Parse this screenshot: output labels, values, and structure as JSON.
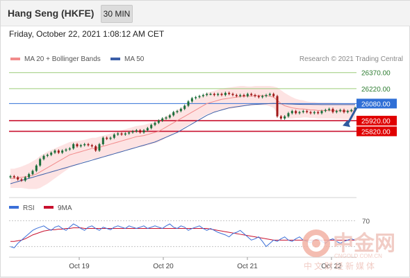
{
  "header": {
    "title": "Hang Seng (HKFE)",
    "interval": "30 MIN"
  },
  "datetime": "Friday, October 22, 2021 1:08:12 AM CET",
  "legend": {
    "ma20_label": "MA 20 + Bollinger Bands",
    "ma50_label": "MA 50",
    "copyright": "Research © 2021 Trading Central"
  },
  "rsi_legend": {
    "rsi_label": "RSI",
    "ma9_label": "9MA"
  },
  "watermark": {
    "logo_text": "中金网",
    "domain": "CNGOLD.COM.CN",
    "sub": "中文财经新媒体"
  },
  "colors": {
    "ma20": "#f28b8b",
    "ma50": "#3b5ea8",
    "band_fill": "#fde3e3",
    "resistance": "#9ccc78",
    "support": "#c8102e",
    "pivot": "#2f6fd6",
    "candle_up": "#1b6e3a",
    "candle_down": "#a01818",
    "rsi": "#3a6fd8",
    "rsi_ma": "#c8102e",
    "arrow": "#2f5a9e"
  },
  "chart_data": [
    {
      "type": "candlestick",
      "x_ticks": [
        "Oct 19",
        "Oct 20",
        "Oct 21",
        "Oct 22"
      ],
      "ylim": [
        25200,
        26420
      ],
      "levels": [
        {
          "name": "26370.00",
          "value": 26370,
          "kind": "resistance"
        },
        {
          "name": "26220.00",
          "value": 26220,
          "kind": "resistance"
        },
        {
          "name": "26080.00",
          "value": 26080,
          "kind": "pivot"
        },
        {
          "name": "25920.00",
          "value": 25920,
          "kind": "support"
        },
        {
          "name": "25820.00",
          "value": 25820,
          "kind": "support"
        }
      ],
      "close_series": [
        25400,
        25390,
        25370,
        25360,
        25390,
        25420,
        25450,
        25500,
        25560,
        25590,
        25600,
        25620,
        25640,
        25620,
        25640,
        25650,
        25660,
        25700,
        25680,
        25690,
        25700,
        25690,
        25680,
        25640,
        25700,
        25760,
        25750,
        25760,
        25790,
        25800,
        25790,
        25800,
        25810,
        25820,
        25830,
        25810,
        25830,
        25850,
        25880,
        25900,
        25920,
        25940,
        25950,
        25970,
        26000,
        26010,
        26030,
        26060,
        26100,
        26130,
        26140,
        26150,
        26160,
        26170,
        26170,
        26160,
        26170,
        26160,
        26180,
        26170,
        26160,
        26150,
        26160,
        26150,
        26170,
        26160,
        26150,
        26140,
        26150,
        26160,
        26170,
        26150,
        25960,
        25940,
        25960,
        25990,
        26010,
        25990,
        26000,
        26010,
        26000,
        25990,
        26000,
        25990,
        26010,
        26020,
        26030,
        26000,
        26010,
        26020,
        26000,
        26010,
        26020,
        26040
      ],
      "ma20": [
        25380,
        25380,
        25385,
        25390,
        25395,
        25400,
        25410,
        25420,
        25440,
        25460,
        25480,
        25500,
        25520,
        25540,
        25560,
        25580,
        25600,
        25610,
        25620,
        25630,
        25640,
        25650,
        25660,
        25660,
        25670,
        25680,
        25690,
        25700,
        25710,
        25720,
        25730,
        25740,
        25750,
        25760,
        25770,
        25775,
        25780,
        25790,
        25800,
        25810,
        25820,
        25840,
        25860,
        25880,
        25900,
        25920,
        25940,
        25960,
        25980,
        26000,
        26020,
        26040,
        26060,
        26080,
        26090,
        26100,
        26110,
        26120,
        26125,
        26130,
        26135,
        26140,
        26145,
        26150,
        26150,
        26150,
        26155,
        26155,
        26155,
        26155,
        26150,
        26140,
        26110,
        26080,
        26060,
        26050,
        26040,
        26035,
        26030,
        26030,
        26025,
        26020,
        26020,
        26015,
        26015,
        26015,
        26015,
        26015,
        26012,
        26012,
        26010,
        26010,
        26010,
        26012
      ],
      "ma50": [
        25330,
        25340,
        25350,
        25360,
        25370,
        25380,
        25390,
        25400,
        25410,
        25420,
        25430,
        25440,
        25450,
        25460,
        25470,
        25480,
        25490,
        25500,
        25510,
        25520,
        25530,
        25540,
        25550,
        25560,
        25570,
        25580,
        25590,
        25600,
        25610,
        25620,
        25630,
        25640,
        25650,
        25660,
        25670,
        25680,
        25690,
        25700,
        25710,
        25720,
        25735,
        25750,
        25765,
        25780,
        25795,
        25810,
        25830,
        25850,
        25870,
        25890,
        25910,
        25930,
        25950,
        25970,
        25985,
        26000,
        26010,
        26020,
        26030,
        26040,
        26045,
        26050,
        26055,
        26060,
        26065,
        26070,
        26072,
        26074,
        26076,
        26078,
        26080,
        26082,
        26080,
        26078,
        26078,
        26076,
        26075,
        26074,
        26073,
        26072,
        26072,
        26072,
        26071,
        26071,
        26070,
        26070,
        26070,
        26070,
        26070,
        26070,
        26070,
        26070,
        26070,
        26070
      ],
      "band_width": [
        90,
        90,
        95,
        100,
        110,
        120,
        130,
        140,
        150,
        150,
        150,
        145,
        140,
        135,
        130,
        125,
        120,
        115,
        110,
        105,
        100,
        100,
        100,
        100,
        100,
        100,
        100,
        100,
        100,
        100,
        100,
        100,
        100,
        100,
        100,
        100,
        100,
        100,
        100,
        100,
        100,
        100,
        100,
        100,
        100,
        100,
        100,
        100,
        100,
        100,
        100,
        100,
        100,
        100,
        100,
        100,
        100,
        100,
        100,
        100,
        100,
        100,
        100,
        95,
        90,
        90,
        90,
        90,
        90,
        90,
        95,
        100,
        120,
        125,
        120,
        110,
        100,
        90,
        85,
        80,
        75,
        75,
        75,
        75,
        75,
        75,
        75,
        75,
        75,
        75,
        75,
        75,
        75,
        75
      ],
      "forecast": {
        "from": 26040,
        "to": 25860
      }
    },
    {
      "type": "line",
      "title": "RSI",
      "ylim": [
        20,
        80
      ],
      "y_ticks": [
        70
      ],
      "series": [
        {
          "name": "RSI",
          "values": [
            30,
            28,
            35,
            40,
            45,
            50,
            55,
            58,
            60,
            62,
            58,
            55,
            60,
            62,
            58,
            55,
            60,
            65,
            62,
            58,
            55,
            60,
            62,
            58,
            55,
            60,
            58,
            56,
            60,
            62,
            60,
            58,
            62,
            60,
            58,
            60,
            62,
            58,
            60,
            62,
            60,
            58,
            62,
            65,
            60,
            58,
            62,
            60,
            55,
            58,
            60,
            62,
            58,
            55,
            58,
            55,
            52,
            50,
            48,
            45,
            50,
            52,
            55,
            50,
            45,
            40,
            42,
            45,
            38,
            30,
            35,
            40,
            38,
            42,
            45,
            40,
            38,
            42,
            45,
            40,
            38,
            36,
            40,
            42,
            38,
            35,
            40,
            42,
            38,
            35,
            38,
            40,
            42,
            40
          ]
        },
        {
          "name": "9MA",
          "values": [
            38,
            38,
            39,
            40,
            42,
            45,
            48,
            50,
            52,
            54,
            55,
            56,
            56,
            57,
            57,
            58,
            58,
            59,
            59,
            59,
            58,
            58,
            58,
            58,
            58,
            58,
            58,
            58,
            58,
            58,
            58,
            58,
            58,
            58,
            58,
            58,
            58,
            58,
            58,
            58,
            58,
            58,
            58,
            58,
            58,
            58,
            58,
            58,
            58,
            58,
            58,
            58,
            58,
            58,
            57,
            56,
            55,
            54,
            53,
            52,
            51,
            50,
            49,
            48,
            47,
            46,
            45,
            44,
            43,
            42,
            41,
            40,
            40,
            40,
            40,
            40,
            40,
            40,
            40,
            40,
            40,
            40,
            40,
            40,
            40,
            40,
            40,
            40,
            40,
            40,
            40,
            40,
            40,
            40
          ]
        }
      ]
    }
  ]
}
